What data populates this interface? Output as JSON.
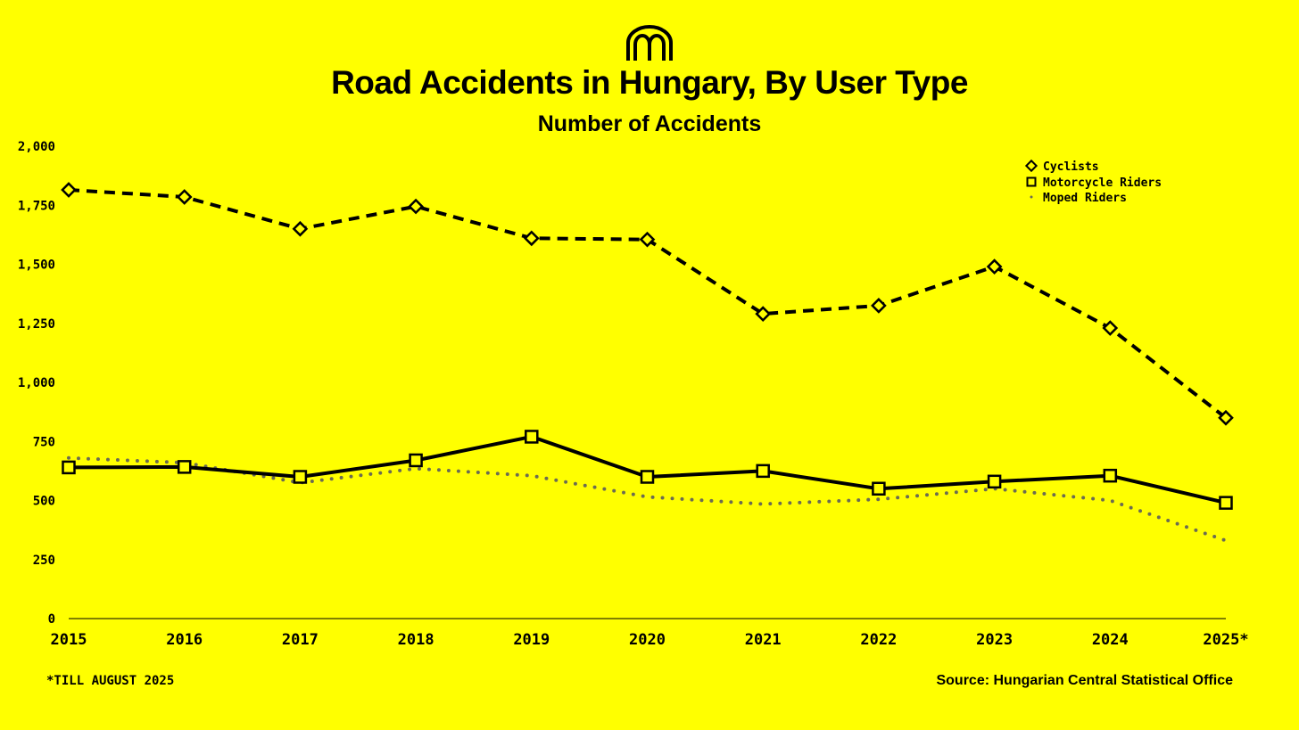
{
  "chart_data": {
    "type": "line",
    "title": "Road Accidents in Hungary, By User Type",
    "subtitle": "Number of Accidents",
    "categories": [
      "2015",
      "2016",
      "2017",
      "2018",
      "2019",
      "2020",
      "2021",
      "2022",
      "2023",
      "2024",
      "2025*"
    ],
    "ylim": [
      0,
      2000
    ],
    "yticks": [
      0,
      250,
      500,
      750,
      1000,
      1250,
      1500,
      1750,
      2000
    ],
    "ytick_labels": [
      "0",
      "250",
      "500",
      "750",
      "1,000",
      "1,250",
      "1,500",
      "1,750",
      "2,000"
    ],
    "legend_position": "top-right",
    "grid": false,
    "series": [
      {
        "name": "Cyclists",
        "style": "dashed",
        "marker": "diamond",
        "values": [
          1815,
          1785,
          1650,
          1745,
          1610,
          1605,
          1290,
          1325,
          1490,
          1230,
          850
        ]
      },
      {
        "name": "Motorcycle Riders",
        "style": "solid",
        "marker": "square",
        "values": [
          640,
          642,
          600,
          670,
          770,
          600,
          625,
          550,
          580,
          605,
          490
        ]
      },
      {
        "name": "Moped Riders",
        "style": "dotted",
        "marker": "none",
        "values": [
          680,
          660,
          575,
          635,
          605,
          515,
          485,
          505,
          550,
          500,
          330
        ]
      }
    ],
    "footnote": "*TILL AUGUST 2025",
    "source": "Source: Hungarian Central Statistical Office"
  },
  "colors": {
    "background": "#ffff00",
    "line": "#000000",
    "moped": "#6b6b52",
    "marker_fill": "#ffff00"
  },
  "logo_icon": "brand-arch-logo-icon"
}
